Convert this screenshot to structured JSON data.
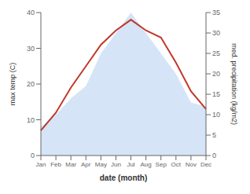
{
  "chart_data": {
    "type": "line",
    "categories": [
      "Jan",
      "Feb",
      "Mar",
      "Apr",
      "May",
      "Jun",
      "Jul",
      "Aug",
      "Sep",
      "Oct",
      "Nov",
      "Dec"
    ],
    "xlabel": "date (month)",
    "ylabel": "max temp (C)",
    "y2label": "med. precipitation (kg/m2)",
    "ylim": [
      0,
      40
    ],
    "yticks": [
      0,
      10,
      20,
      30,
      40
    ],
    "y2lim": [
      0,
      35
    ],
    "y2ticks": [
      0,
      5,
      10,
      15,
      20,
      25,
      30,
      35
    ],
    "grid": false,
    "series": [
      {
        "type": "area",
        "axis": "y2",
        "color": "#c5d8f5",
        "values": [
          7,
          10,
          14,
          17,
          25,
          30,
          35,
          30,
          25,
          20,
          13,
          12
        ]
      },
      {
        "type": "line",
        "color": "#c0392b",
        "values": [
          7,
          12,
          19,
          25,
          31,
          35,
          38,
          35,
          33,
          26,
          18,
          13
        ]
      }
    ]
  }
}
